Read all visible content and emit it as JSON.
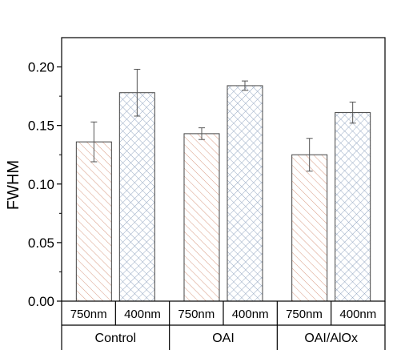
{
  "chart_data": {
    "type": "bar",
    "title": "",
    "xlabel": "",
    "ylabel": "FWHM",
    "ylim": [
      0.0,
      0.225
    ],
    "yticks": [
      "0.00",
      "0.05",
      "0.10",
      "0.15",
      "0.20"
    ],
    "ytick_values": [
      0.0,
      0.05,
      0.1,
      0.15,
      0.2
    ],
    "grid": false,
    "groups": [
      {
        "label": "Control",
        "bars": [
          {
            "category": "750nm",
            "value": 0.136,
            "error": 0.017
          },
          {
            "category": "400nm",
            "value": 0.178,
            "error": 0.02
          }
        ]
      },
      {
        "label": "OAI",
        "bars": [
          {
            "category": "750nm",
            "value": 0.143,
            "error": 0.005
          },
          {
            "category": "400nm",
            "value": 0.184,
            "error": 0.004
          }
        ]
      },
      {
        "label": "OAI/AlOx",
        "bars": [
          {
            "category": "750nm",
            "value": 0.125,
            "error": 0.014
          },
          {
            "category": "400nm",
            "value": 0.161,
            "error": 0.009
          }
        ]
      }
    ],
    "colors": {
      "750nm": "#d89a82",
      "400nm": "#94a7c2"
    }
  }
}
